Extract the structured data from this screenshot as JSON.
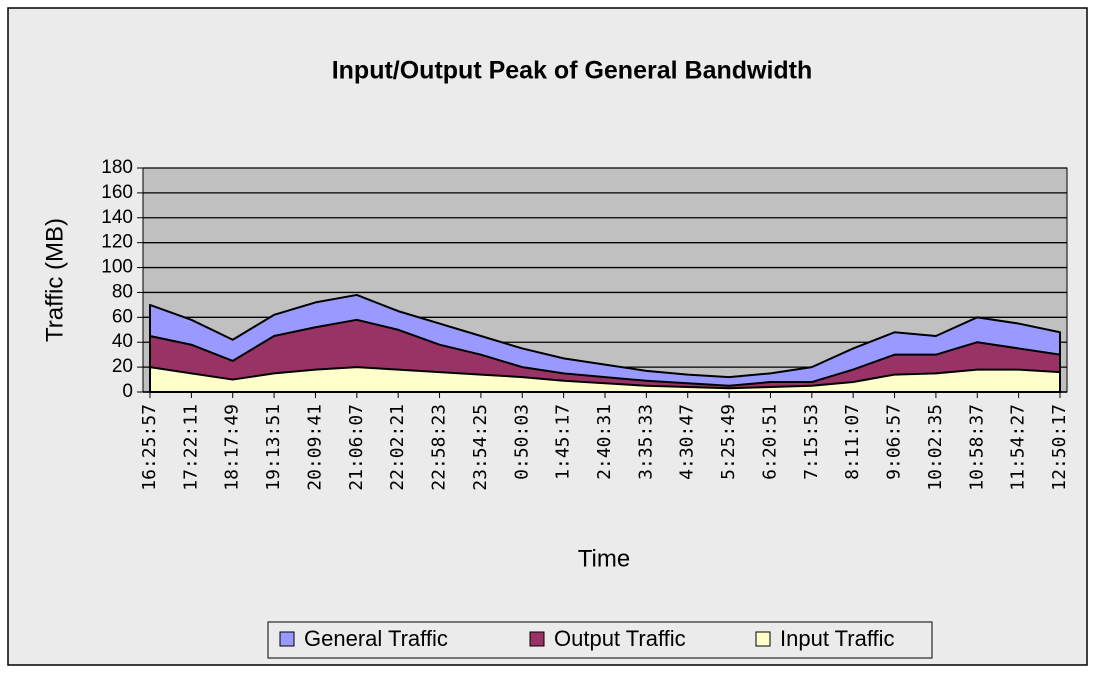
{
  "chart_data": {
    "type": "area",
    "title": "Input/Output Peak of General Bandwidth",
    "x_label": "Time",
    "y_label": "Traffic (MB)",
    "categories": [
      "16:25:57",
      "17:22:11",
      "18:17:49",
      "19:13:51",
      "20:09:41",
      "21:06:07",
      "22:02:21",
      "22:58:23",
      "23:54:25",
      "0:50:03",
      "1:45:17",
      "2:40:31",
      "3:35:33",
      "4:30:47",
      "5:25:49",
      "6:20:51",
      "7:15:53",
      "8:11:07",
      "9:06:57",
      "10:02:35",
      "10:58:37",
      "11:54:27",
      "12:50:17"
    ],
    "series": [
      {
        "name": "General Traffic",
        "color": "#9999ff",
        "values": [
          70,
          58,
          42,
          62,
          72,
          78,
          65,
          55,
          45,
          35,
          27,
          22,
          17,
          14,
          12,
          15,
          20,
          35,
          48,
          45,
          60,
          55,
          48
        ]
      },
      {
        "name": "Output Traffic",
        "color": "#993366",
        "values": [
          45,
          38,
          25,
          45,
          52,
          58,
          50,
          38,
          30,
          20,
          15,
          12,
          9,
          7,
          5,
          8,
          8,
          18,
          30,
          30,
          40,
          35,
          30
        ]
      },
      {
        "name": "Input Traffic",
        "color": "#ffffcc",
        "values": [
          20,
          15,
          10,
          15,
          18,
          20,
          18,
          16,
          14,
          12,
          9,
          7,
          5,
          4,
          3,
          4,
          5,
          8,
          14,
          15,
          18,
          18,
          16
        ]
      }
    ],
    "ylim": [
      0,
      180
    ],
    "yticks": [
      0,
      20,
      40,
      60,
      80,
      100,
      120,
      140,
      160,
      180
    ],
    "grid": true,
    "plot_background": "#c0c0c0",
    "legend": "bottom"
  }
}
